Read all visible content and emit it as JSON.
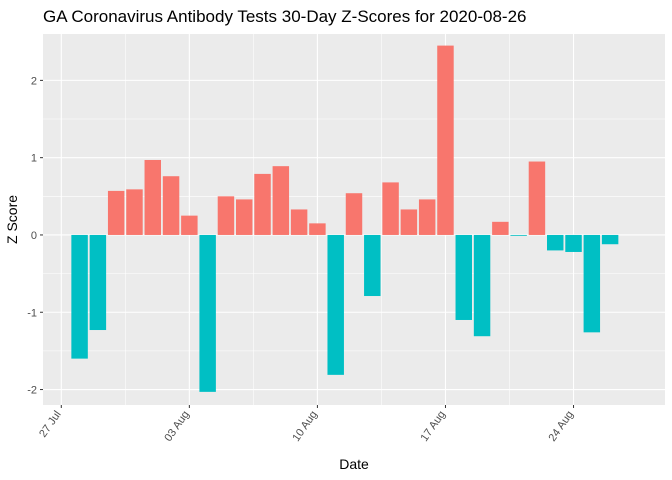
{
  "chart_data": {
    "type": "bar",
    "title": "GA Coronavirus Antibody Tests 30-Day Z-Scores for 2020-08-26",
    "xlabel": "Date",
    "ylabel": "Z Score",
    "x_tick_labels": [
      "27 Jul",
      "03 Aug",
      "10 Aug",
      "17 Aug",
      "24 Aug"
    ],
    "x_tick_dates": [
      "2020-07-27",
      "2020-08-03",
      "2020-08-10",
      "2020-08-17",
      "2020-08-24"
    ],
    "xlim": [
      "2020-07-26",
      "2020-08-29"
    ],
    "y_ticks": [
      -2,
      -1,
      0,
      1,
      2
    ],
    "ylim": [
      -2.2,
      2.6
    ],
    "grid": true,
    "legend": "none",
    "colors": {
      "positive": "#F8766D",
      "negative": "#00BFC4",
      "panel": "#EBEBEB",
      "grid": "#FFFFFF"
    },
    "dates": [
      "2020-07-28",
      "2020-07-29",
      "2020-07-30",
      "2020-07-31",
      "2020-08-01",
      "2020-08-02",
      "2020-08-03",
      "2020-08-04",
      "2020-08-05",
      "2020-08-06",
      "2020-08-07",
      "2020-08-08",
      "2020-08-09",
      "2020-08-10",
      "2020-08-11",
      "2020-08-12",
      "2020-08-13",
      "2020-08-14",
      "2020-08-15",
      "2020-08-16",
      "2020-08-17",
      "2020-08-18",
      "2020-08-19",
      "2020-08-20",
      "2020-08-21",
      "2020-08-22",
      "2020-08-23",
      "2020-08-24",
      "2020-08-25",
      "2020-08-26"
    ],
    "values": [
      -1.6,
      -1.23,
      0.57,
      0.59,
      0.97,
      0.76,
      0.25,
      -2.03,
      0.5,
      0.46,
      0.79,
      0.89,
      0.33,
      0.15,
      -1.81,
      0.54,
      -0.79,
      0.68,
      0.33,
      0.46,
      2.45,
      -1.1,
      -1.31,
      0.17,
      -0.01,
      0.95,
      -0.2,
      -0.22,
      -1.26,
      -0.12
    ]
  }
}
